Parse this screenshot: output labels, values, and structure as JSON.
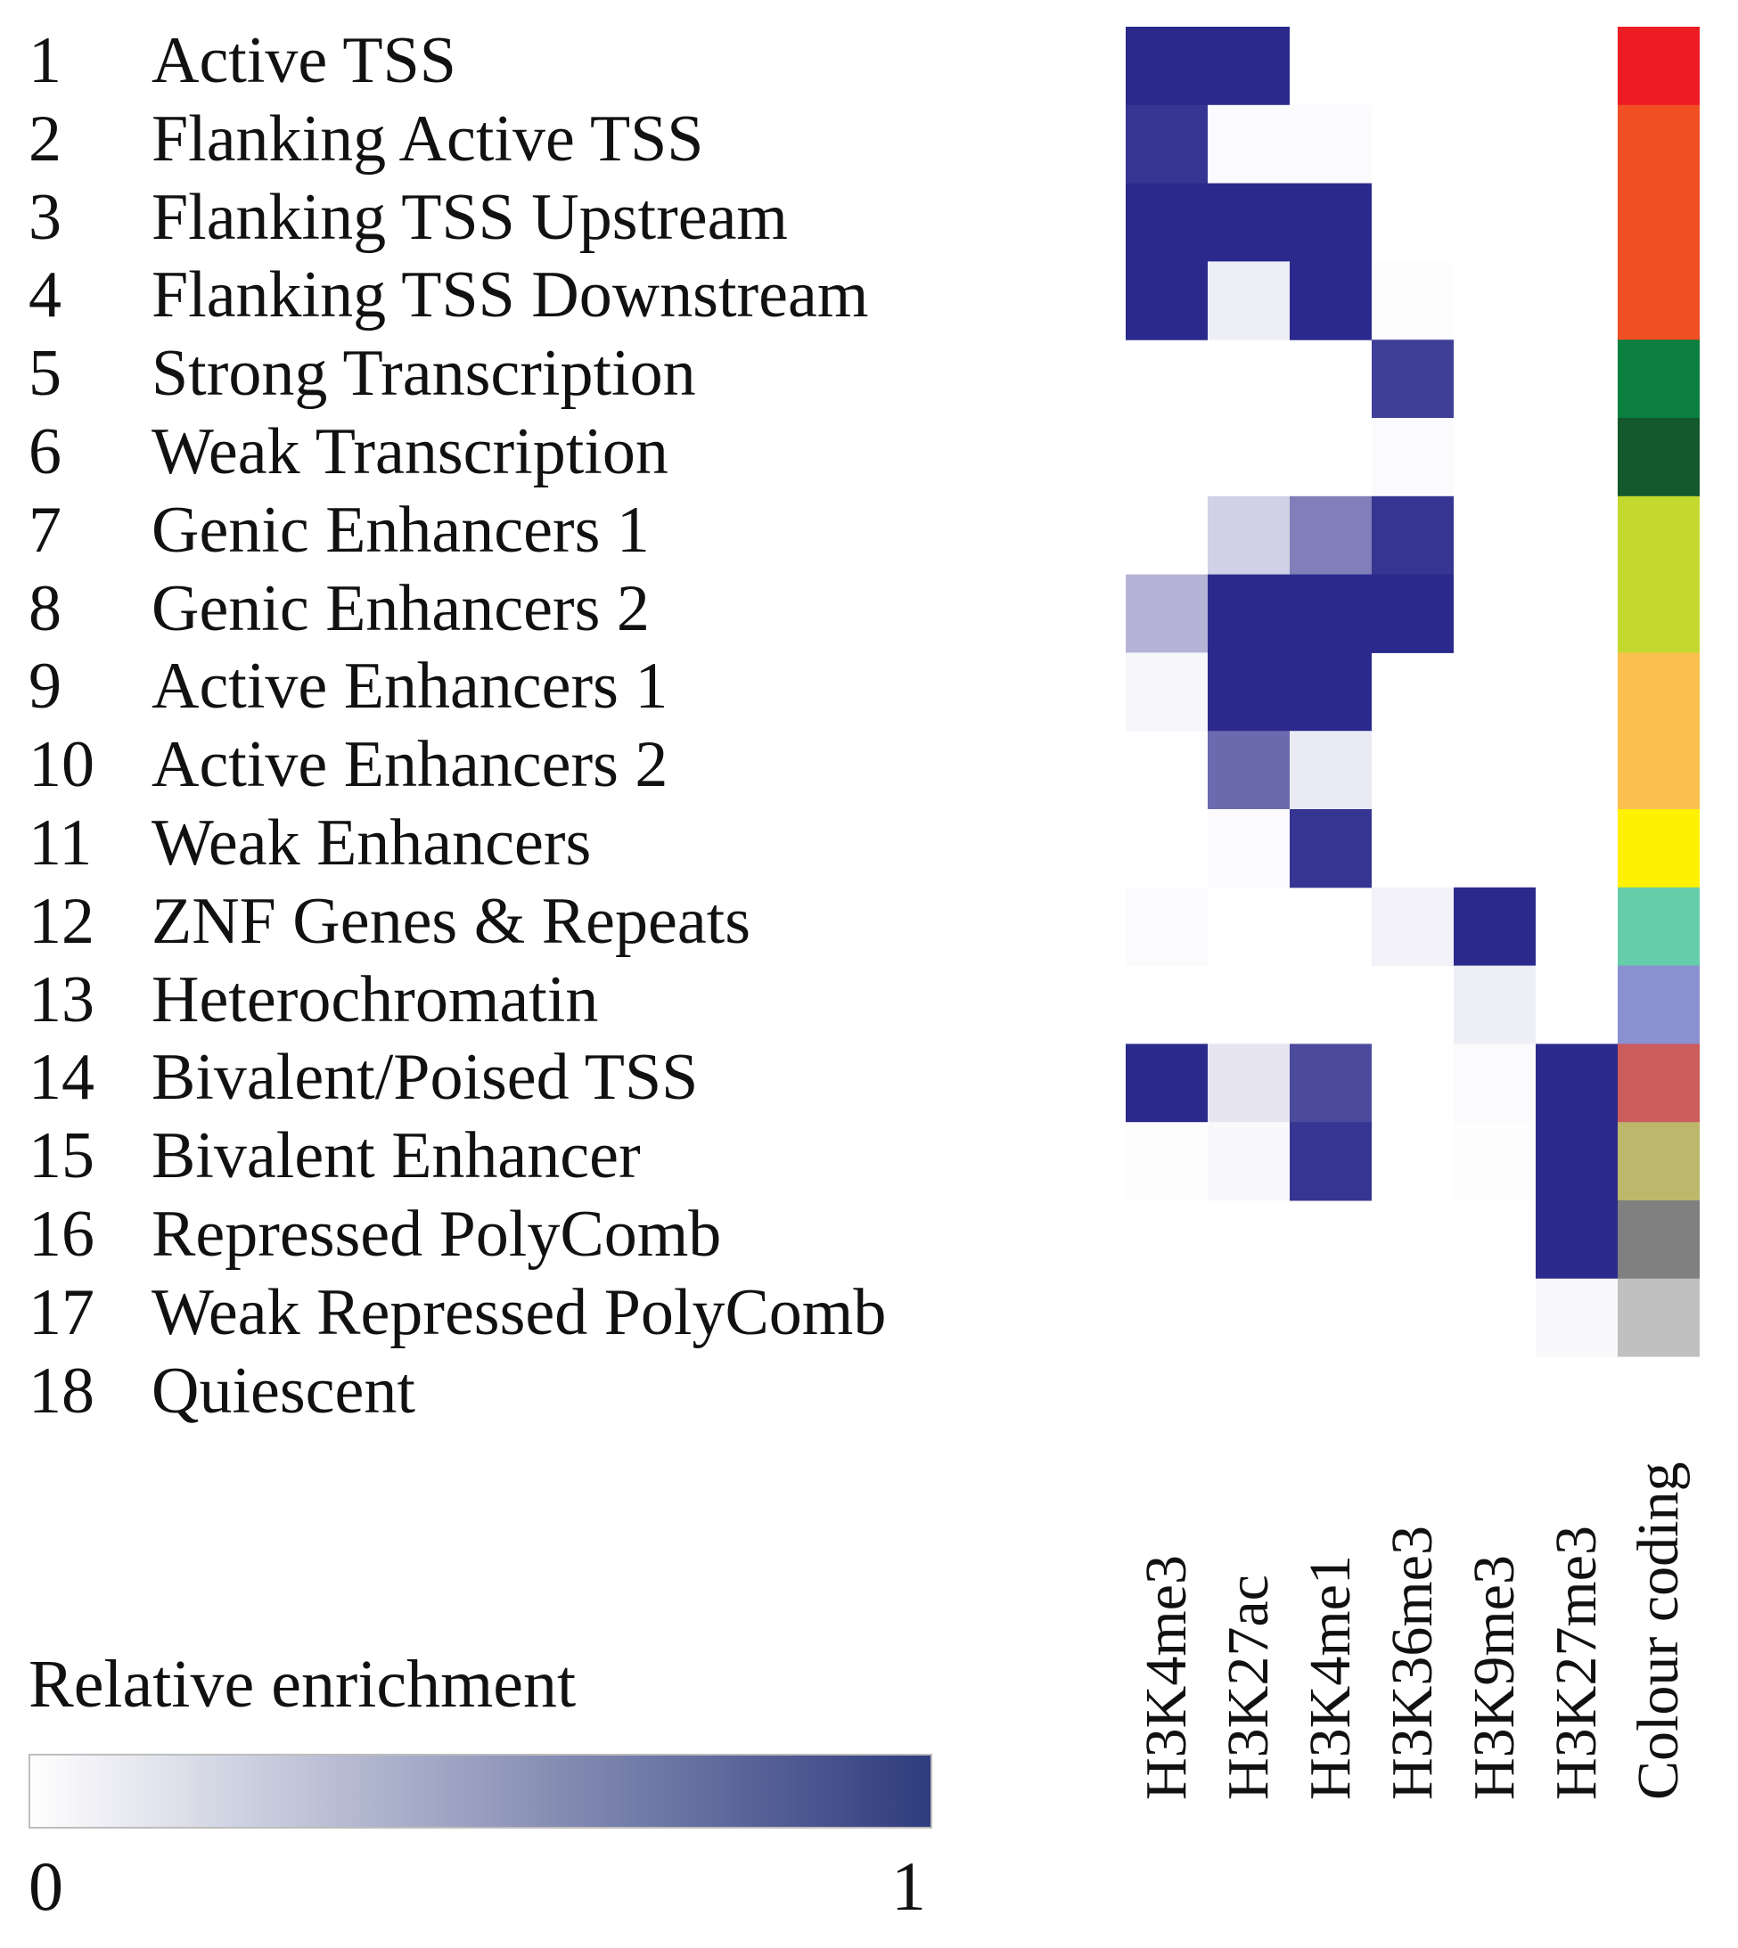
{
  "chart_data": {
    "type": "heatmap",
    "rows": [
      {
        "number": "1",
        "name": "Active TSS"
      },
      {
        "number": "2",
        "name": "Flanking Active TSS"
      },
      {
        "number": "3",
        "name": "Flanking TSS Upstream"
      },
      {
        "number": "4",
        "name": "Flanking TSS Downstream"
      },
      {
        "number": "5",
        "name": "Strong Transcription"
      },
      {
        "number": "6",
        "name": "Weak Transcription"
      },
      {
        "number": "7",
        "name": "Genic Enhancers 1"
      },
      {
        "number": "8",
        "name": "Genic Enhancers 2"
      },
      {
        "number": "9",
        "name": "Active Enhancers 1"
      },
      {
        "number": "10",
        "name": "Active Enhancers 2"
      },
      {
        "number": "11",
        "name": "Weak Enhancers"
      },
      {
        "number": "12",
        "name": "ZNF Genes & Repeats"
      },
      {
        "number": "13",
        "name": "Heterochromatin"
      },
      {
        "number": "14",
        "name": "Bivalent/Poised TSS"
      },
      {
        "number": "15",
        "name": "Bivalent Enhancer"
      },
      {
        "number": "16",
        "name": "Repressed PolyComb"
      },
      {
        "number": "17",
        "name": "Weak Repressed PolyComb"
      },
      {
        "number": "18",
        "name": "Quiescent"
      }
    ],
    "columns": [
      "H3K4me3",
      "H3K27ac",
      "H3K4me1",
      "H3K36me3",
      "H3K9me3",
      "H3K27me3"
    ],
    "values": [
      [
        1.0,
        1.0,
        0.0,
        0.0,
        0.0,
        0.0
      ],
      [
        0.95,
        0.02,
        0.02,
        0.0,
        0.0,
        0.0
      ],
      [
        1.0,
        1.0,
        1.0,
        0.0,
        0.0,
        0.0
      ],
      [
        1.0,
        0.08,
        1.0,
        0.01,
        0.0,
        0.0
      ],
      [
        0.0,
        0.0,
        0.0,
        0.9,
        0.0,
        0.0
      ],
      [
        0.0,
        0.0,
        0.0,
        0.02,
        0.0,
        0.0
      ],
      [
        0.0,
        0.22,
        0.6,
        0.95,
        0.0,
        0.0
      ],
      [
        0.35,
        1.0,
        1.0,
        1.0,
        0.0,
        0.0
      ],
      [
        0.04,
        1.0,
        1.0,
        0.0,
        0.0,
        0.0
      ],
      [
        0.0,
        0.7,
        0.1,
        0.0,
        0.0,
        0.0
      ],
      [
        0.0,
        0.02,
        0.95,
        0.0,
        0.0,
        0.0
      ],
      [
        0.02,
        0.0,
        0.0,
        0.06,
        1.0,
        0.0
      ],
      [
        0.0,
        0.0,
        0.0,
        0.0,
        0.08,
        0.0
      ],
      [
        1.0,
        0.12,
        0.85,
        0.0,
        0.02,
        1.0
      ],
      [
        0.01,
        0.03,
        0.95,
        0.0,
        0.01,
        1.0
      ],
      [
        0.0,
        0.0,
        0.0,
        0.0,
        0.0,
        1.0
      ],
      [
        0.0,
        0.0,
        0.0,
        0.0,
        0.0,
        0.03
      ],
      [
        0.0,
        0.0,
        0.0,
        0.0,
        0.0,
        0.0
      ]
    ],
    "colour_coding_label": "Colour coding",
    "colour_coding": [
      "#ed1c24",
      "#f04e23",
      "#f04e23",
      "#f04e23",
      "#0b7f3f",
      "#14582d",
      "#c4d92e",
      "#c4d92e",
      "#fbc04e",
      "#fbc04e",
      "#fff200",
      "#66cdaa",
      "#8a91d0",
      "#cd5c5c",
      "#bdb76b",
      "#808080",
      "#c0c0c0",
      "#ffffff"
    ],
    "colour_scale": {
      "title": "Relative enrichment",
      "min_label": "0",
      "max_label": "1",
      "min": 0,
      "max": 1,
      "low_color": "#ffffff",
      "high_color": "#2b2a8c",
      "legend_high_color": "#2f3c7e"
    }
  }
}
